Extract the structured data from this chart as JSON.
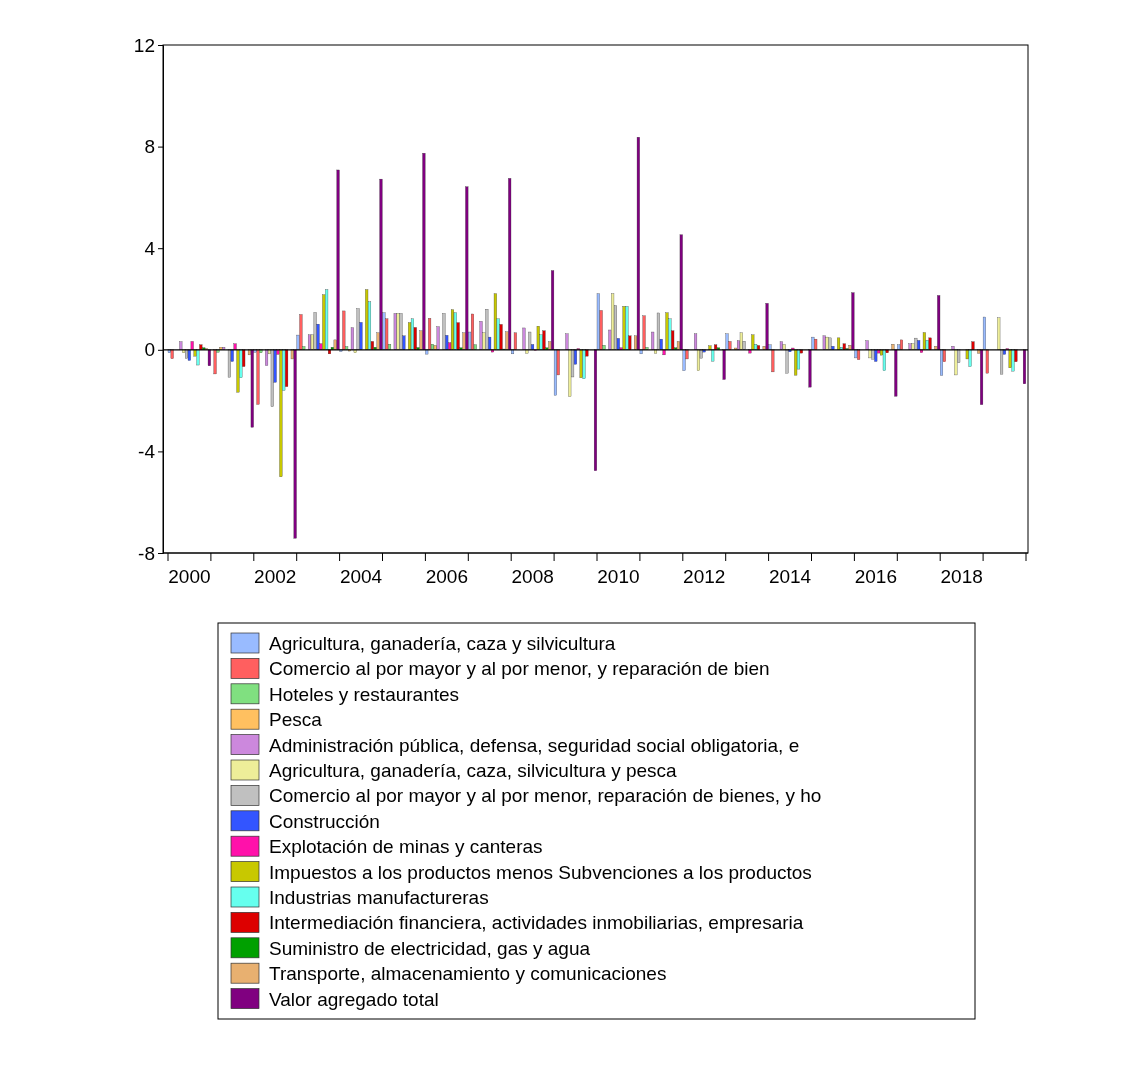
{
  "chart_data": {
    "type": "bar",
    "categories": [
      "2000",
      null,
      "2002",
      null,
      "2004",
      null,
      "2006",
      null,
      "2008",
      null,
      "2010",
      null,
      "2012",
      null,
      "2014",
      null,
      "2016",
      null,
      "2018",
      null
    ],
    "ylim": [
      -8,
      12
    ],
    "yticks": [
      -8,
      -4,
      0,
      4,
      8,
      12
    ],
    "legend": "bottom",
    "ref_lines": [
      {
        "axis": "y",
        "value": 0,
        "color": "#000000"
      }
    ],
    "series": [
      {
        "name": "Agricultura, ganadería, caza y silvicultura",
        "color": "#99bbff",
        "values": [
          -0.12,
          0,
          -0.1,
          0.58,
          -0.07,
          1.46,
          -0.17,
          0.7,
          -0.16,
          -1.79,
          2.21,
          -0.16,
          -0.82,
          0.63,
          0.2,
          0.5,
          -0.32,
          0.2,
          -1.01,
          1.29
        ]
      },
      {
        "name": "Comercio al por mayor y al por menor, y reparación de bien",
        "color": "#ff5f5f",
        "values": [
          -0.35,
          -0.95,
          -2.15,
          1.39,
          1.53,
          1.22,
          1.24,
          1.41,
          0.67,
          -0.99,
          1.55,
          1.34,
          -0.36,
          0.33,
          -0.87,
          0.42,
          -0.39,
          0.39,
          -0.47,
          -0.92
        ]
      },
      {
        "name": "Hoteles y restaurantes",
        "color": "#80e080",
        "values": [
          0,
          -0.1,
          -0.12,
          0.13,
          0.13,
          0.22,
          0.22,
          0.2,
          0,
          0,
          0.18,
          0.1,
          0,
          0,
          0,
          0,
          0,
          null,
          0,
          0
        ]
      },
      {
        "name": "Pesca",
        "color": "#ffc060",
        "values": [
          null,
          0.1,
          0,
          0,
          -0.05,
          0,
          0.17,
          0,
          0,
          0,
          0,
          0,
          0,
          0.07,
          0,
          0,
          0,
          0,
          0,
          0
        ]
      },
      {
        "name": "Administración pública, defensa, seguridad social obligatoria, e",
        "color": "#cc88dd",
        "values": [
          0.32,
          0.1,
          -0.62,
          0.59,
          0.87,
          1.43,
          0.91,
          1.12,
          0.86,
          0.63,
          0.78,
          0.7,
          0.63,
          0.36,
          0.32,
          0.55,
          0.36,
          0.24,
          0.14,
          null
        ]
      },
      {
        "name": "Agricultura, ganadería, caza, silvicultura y pesca",
        "color": "#eeee99",
        "values": [
          -0.12,
          0,
          -0.16,
          0.59,
          -0.12,
          1.43,
          0,
          0.67,
          -0.14,
          -1.84,
          2.21,
          -0.14,
          -0.82,
          0.67,
          0.21,
          0.5,
          -0.32,
          0.24,
          -0.99,
          1.26
        ]
      },
      {
        "name": "Comercio al por mayor y al por menor, reparación de bienes, y ho",
        "color": "#c0c0c0",
        "values": [
          -0.34,
          -1.08,
          -2.24,
          1.47,
          1.62,
          1.43,
          1.43,
          1.6,
          0.7,
          -1.07,
          1.74,
          1.45,
          -0.33,
          0.34,
          -0.92,
          0.47,
          -0.37,
          0.46,
          -0.51,
          -0.96
        ]
      },
      {
        "name": "Construcción",
        "color": "#3355ff",
        "values": [
          -0.42,
          -0.46,
          -1.28,
          1.01,
          1.08,
          0.55,
          0.57,
          0.5,
          0.21,
          -0.57,
          0.45,
          0.42,
          -0.09,
          0,
          -0.08,
          0.14,
          -0.46,
          0.37,
          null,
          -0.18
        ]
      },
      {
        "name": "Explotación de minas y canteras",
        "color": "#ff11aa",
        "values": [
          0.33,
          0.24,
          -0.18,
          0.24,
          0,
          0,
          0.28,
          -0.09,
          -0.02,
          0.05,
          0.08,
          -0.2,
          0,
          -0.13,
          0.07,
          0,
          -0.13,
          -0.11,
          0,
          0.05
        ]
      },
      {
        "name": "Impuestos a los productos menos Subvenciones a los productos",
        "color": "#c8c800",
        "values": [
          -0.25,
          -1.67,
          -5.0,
          2.17,
          2.37,
          1.07,
          1.58,
          2.21,
          0.93,
          -1.1,
          1.71,
          1.46,
          0.16,
          0.59,
          -1.0,
          0.47,
          -0.21,
          0.68,
          -0.36,
          -0.71
        ]
      },
      {
        "name": "Industrias manufactureras",
        "color": "#66ffee",
        "values": [
          -0.6,
          -1.1,
          -1.6,
          2.37,
          1.89,
          1.22,
          1.46,
          1.22,
          0.59,
          -1.14,
          1.71,
          1.22,
          -0.45,
          0.22,
          -0.76,
          0.1,
          -0.82,
          0.38,
          -0.66,
          -0.84
        ]
      },
      {
        "name": "Intermediación financiera, actividades inmobiliarias, empresaria",
        "color": "#dd0000",
        "values": [
          0.2,
          -0.66,
          -1.45,
          -0.16,
          0.33,
          0.88,
          1.07,
          1.0,
          0.75,
          -0.25,
          0.55,
          0.75,
          0.2,
          0.17,
          -0.13,
          0.24,
          -0.12,
          0.47,
          0.32,
          -0.47
        ]
      },
      {
        "name": "Suministro de electricidad, gas y agua",
        "color": "#00a000",
        "values": [
          0.08,
          0,
          0,
          0.1,
          0.1,
          0.09,
          0.08,
          0.03,
          0.08,
          0,
          0,
          0.08,
          0.08,
          0,
          0,
          0.05,
          0,
          0,
          0,
          0
        ]
      },
      {
        "name": "Transporte, almacenamiento y comunicaciones",
        "color": "#e8b070",
        "values": [
          0.05,
          -0.2,
          -0.36,
          0.39,
          0.67,
          0.75,
          0.67,
          0.71,
          0.32,
          0,
          0.55,
          0.33,
          0,
          0.14,
          0,
          0.18,
          0.22,
          0.14,
          -0.14,
          0
        ]
      },
      {
        "name": "Valor agregado total",
        "color": "#800080",
        "values": [
          -0.63,
          -3.05,
          -7.42,
          7.08,
          6.72,
          7.74,
          6.42,
          6.75,
          3.12,
          -4.76,
          8.37,
          4.53,
          -1.17,
          1.83,
          -1.47,
          2.25,
          -1.83,
          2.14,
          -2.16,
          -1.34
        ]
      }
    ]
  }
}
